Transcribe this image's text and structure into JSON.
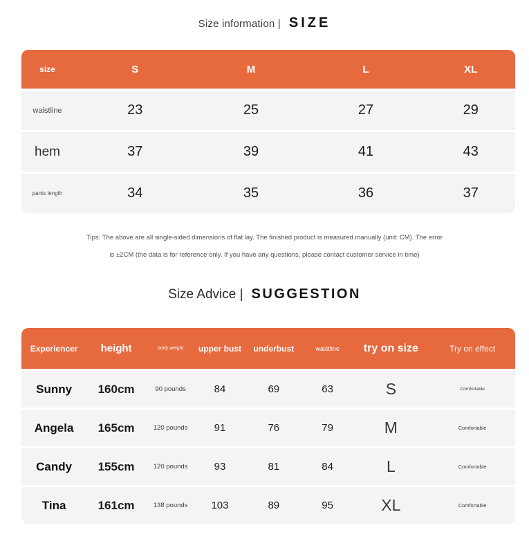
{
  "page": {
    "background": "#ffffff",
    "accent_orange": "#e7693e",
    "row_gray": "#f4f4f4"
  },
  "section_size": {
    "title_left": "Size information |",
    "title_right": "SIZE",
    "table": {
      "columns": [
        "size",
        "S",
        "M",
        "L",
        "XL"
      ],
      "rows": [
        {
          "label": "waistline",
          "values": [
            "23",
            "25",
            "27",
            "29"
          ]
        },
        {
          "label": "hem",
          "values": [
            "37",
            "39",
            "41",
            "43"
          ]
        },
        {
          "label": "pants length",
          "values": [
            "34",
            "35",
            "36",
            "37"
          ]
        }
      ]
    },
    "tips_line1": "Tips: The above are all single-sided dimensions of flat lay. The finished product is measured manually (unit: CM). The error",
    "tips_line2": "is ±2CM (the data is for reference only. If you have any questions, please contact customer service in time)"
  },
  "section_suggestion": {
    "title_left": "Size Advice |",
    "title_right": "SUGGESTION",
    "table": {
      "columns": [
        "Experiencer",
        "height",
        "body weight",
        "upper bust",
        "underbust",
        "waistline",
        "try on size",
        "Try on effect"
      ],
      "rows": [
        {
          "name": "Sunny",
          "height": "160cm",
          "weight": "90 pounds",
          "upper_bust": "84",
          "underbust": "69",
          "waistline": "63",
          "try_on_size": "S",
          "effect": "Comfortable"
        },
        {
          "name": "Angela",
          "height": "165cm",
          "weight": "120 pounds",
          "upper_bust": "91",
          "underbust": "76",
          "waistline": "79",
          "try_on_size": "M",
          "effect": "Comfortable"
        },
        {
          "name": "Candy",
          "height": "155cm",
          "weight": "120 pounds",
          "upper_bust": "93",
          "underbust": "81",
          "waistline": "84",
          "try_on_size": "L",
          "effect": "Comfortable"
        },
        {
          "name": "Tina",
          "height": "161cm",
          "weight": "138 pounds",
          "upper_bust": "103",
          "underbust": "89",
          "waistline": "95",
          "try_on_size": "XL",
          "effect": "Comfortable"
        }
      ]
    }
  }
}
